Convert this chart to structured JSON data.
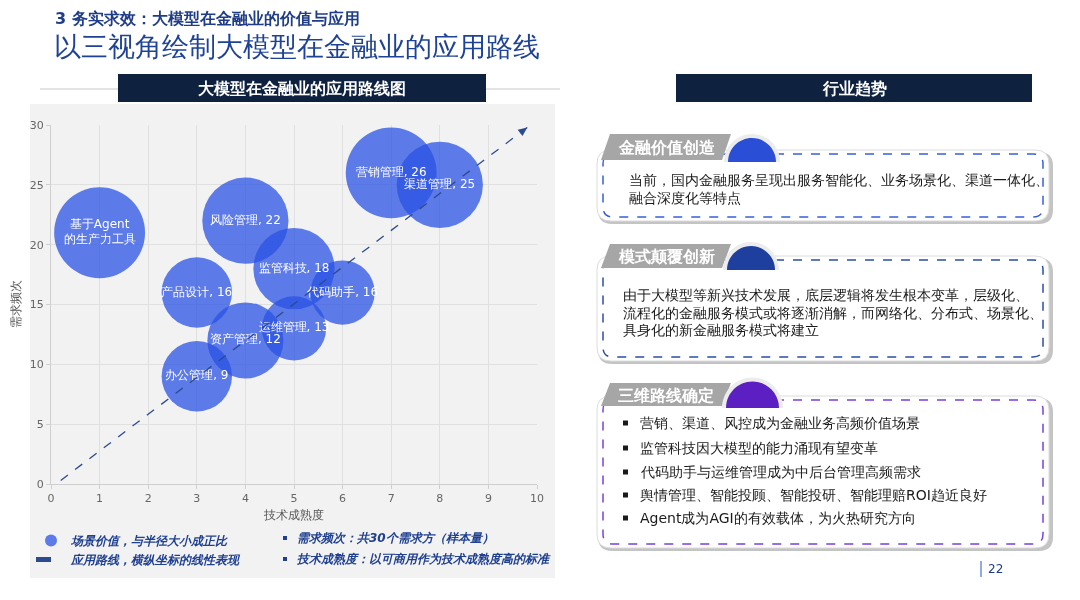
{
  "chart_data": [
    {
      "type": "other",
      "title": "以三视角绘制大模型在金融业的应用路线",
      "subtitle": "3 务实求效：大模型在金融业的价值与应用",
      "annotations": [
        "22"
      ]
    },
    {
      "type": "bubble",
      "title": "大模型在金融业的应用路线图",
      "xlabel": "技术成熟度",
      "ylabel": "需求频次",
      "series": [
        {
          "type": "bubble",
          "name": "场景价值，与半径大小成正比",
          "color": "#2a52e4",
          "x": [
            1,
            4,
            7,
            8,
            5,
            3,
            6,
            5,
            4,
            3
          ],
          "values": [
            21,
            22,
            26,
            25,
            18,
            16,
            16,
            13,
            12,
            9
          ],
          "sizes": [
            1,
            0.9,
            1,
            0.9,
            0.8,
            0.6,
            0.5,
            0.5,
            0.7,
            0.6
          ],
          "value_labels": [
            "基于Agent\n的生产力工具",
            "风险管理, 22",
            "营销管理, 26",
            "渠道管理, 25",
            "监管科技, 18",
            "产品设计, 16",
            "代码助手, 16",
            "运维管理, 13",
            "资产管理, 12",
            "办公管理, 9"
          ]
        },
        {
          "type": "line",
          "name": "应用路线，横纵坐标的线性表现",
          "color": "#2b4a8f",
          "x": [
            0.2,
            9.8
          ],
          "values": [
            0.3,
            29.8
          ],
          "line_style": "dashed"
        }
      ],
      "xlim": [
        0,
        10
      ],
      "xticks": [
        0,
        1,
        2,
        3,
        4,
        5,
        6,
        7,
        8,
        9,
        10
      ],
      "ylim": [
        0,
        30
      ],
      "yticks": [
        0,
        5,
        10,
        15,
        20,
        25,
        30
      ],
      "grid": true,
      "legend": "bottom left",
      "annotations": [
        "需求频次：共30个需求方（样本量）",
        "技术成熟度：以可商用作为技术成熟度高的标准"
      ]
    },
    {
      "type": "other",
      "title": "行业趋势",
      "annotations": [
        "金融价值创造",
        "当前，国内金融服务呈现出服务智能化、业务场景化、渠道一体化、融合深度化等特点",
        "模式颠覆创新",
        "由于大模型等新兴技术发展，底层逻辑将发生根本变革，层级化、流程化的金融服务模式或将逐渐消解，而网络化、分布式、场景化、具身化的新金融服务模式将建立",
        "三维路线确定",
        "营销、渠道、风控成为金融业务高频价值场景",
        "监管科技因大模型的能力涌现有望变革",
        "代码助手与运维管理成为中后台管理高频需求",
        "舆情管理、智能投顾、智能投研、智能理赔ROI趋近良好",
        "Agent成为AGI的有效载体，为火热研究方向"
      ]
    }
  ]
}
